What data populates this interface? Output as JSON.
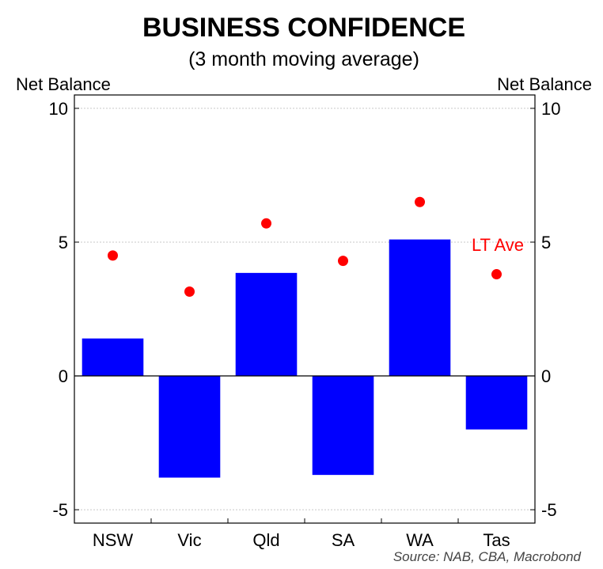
{
  "chart_data": {
    "type": "bar",
    "title": "BUSINESS CONFIDENCE",
    "subtitle": "(3 month moving average)",
    "ylabel_left": "Net Balance",
    "ylabel_right": "Net Balance",
    "ylim": [
      -5.5,
      10.5
    ],
    "yticks": [
      10,
      5,
      0,
      -5
    ],
    "ytick_labels": [
      "10",
      "5",
      "0",
      "-5"
    ],
    "grid": true,
    "categories": [
      "NSW",
      "Vic",
      "Qld",
      "SA",
      "WA",
      "Tas"
    ],
    "series": [
      {
        "type": "bar",
        "color": "#0000ff",
        "values": [
          1.4,
          -3.8,
          3.85,
          -3.7,
          5.1,
          -2.0
        ]
      },
      {
        "name": "LT Ave",
        "type": "scatter",
        "color": "#ff0000",
        "values": [
          4.5,
          3.15,
          5.7,
          4.3,
          6.5,
          3.8
        ]
      }
    ],
    "annotations": [
      {
        "text": "LT Ave",
        "color": "#ff0000"
      }
    ],
    "source": "Source: NAB, CBA, Macrobond"
  }
}
